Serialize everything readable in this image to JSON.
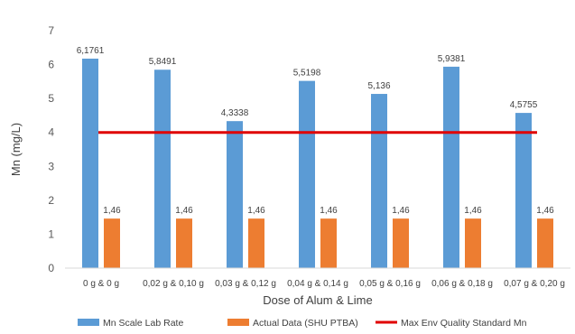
{
  "chart_data": {
    "type": "bar",
    "title": "",
    "xlabel": "Dose of Alum & Lime",
    "ylabel": "Mn (mg/L)",
    "ylim": [
      0,
      7
    ],
    "yticks": [
      "0",
      "1",
      "2",
      "3",
      "4",
      "5",
      "6",
      "7"
    ],
    "grid": false,
    "legend_position": "bottom",
    "categories": [
      "0 g & 0 g",
      "0,02 g & 0,10 g",
      "0,03 g & 0,12 g",
      "0,04 g & 0,14 g",
      "0,05 g & 0,16 g",
      "0,06 g & 0,18 g",
      "0,07 g & 0,20 g"
    ],
    "series": [
      {
        "name": "Mn Scale Lab Rate",
        "color": "#5b9bd5",
        "values": [
          6.1761,
          5.8491,
          4.3338,
          5.5198,
          5.136,
          5.9381,
          4.5755
        ],
        "labels": [
          "6,1761",
          "5,8491",
          "4,3338",
          "5,5198",
          "5,136",
          "5,9381",
          "4,5755"
        ]
      },
      {
        "name": "Actual Data (SHU PTBA)",
        "color": "#ed7d31",
        "values": [
          1.46,
          1.46,
          1.46,
          1.46,
          1.46,
          1.46,
          1.46
        ],
        "labels": [
          "1,46",
          "1,46",
          "1,46",
          "1,46",
          "1,46",
          "1,46",
          "1,46"
        ]
      }
    ],
    "reference_line": {
      "name": "Max Env Quality Standard Mn",
      "color": "#e00000",
      "value": 4
    }
  }
}
